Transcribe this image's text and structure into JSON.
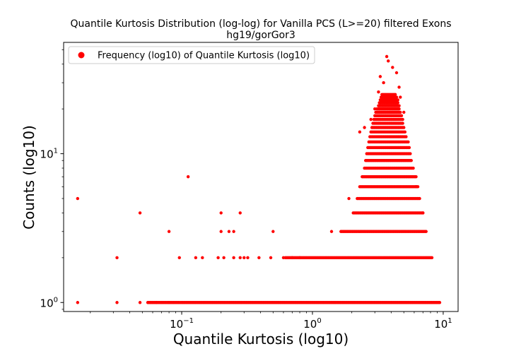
{
  "chart_data": {
    "type": "scatter",
    "title": "Quantile Kurtosis Distribution (log-log) for Vanilla PCS (L>=20) filtered Exons",
    "subtitle": "hg19/gorGor3",
    "xlabel": "Quantile Kurtosis (log10)",
    "ylabel": "Counts (log10)",
    "xscale": "log",
    "yscale": "log",
    "xlim": [
      0.0125,
      13
    ],
    "ylim": [
      0.87,
      56
    ],
    "grid": false,
    "legend_position": "top-left",
    "marker_color": "#ff0000",
    "x_major_ticks": [
      {
        "value": 0.1,
        "base": "10",
        "exp": "−1"
      },
      {
        "value": 1,
        "base": "10",
        "exp": "0"
      },
      {
        "value": 10,
        "base": "10",
        "exp": "1"
      }
    ],
    "y_major_ticks": [
      {
        "value": 1,
        "base": "10",
        "exp": "0"
      },
      {
        "value": 10,
        "base": "10",
        "exp": "1"
      }
    ],
    "series": [
      {
        "name": "Frequency (log10) of Quantile Kurtosis (log10)",
        "color": "#ff0000",
        "points": [
          [
            0.016,
            5
          ],
          [
            0.016,
            1
          ],
          [
            0.032,
            2
          ],
          [
            0.032,
            1
          ],
          [
            0.048,
            4
          ],
          [
            0.048,
            1
          ],
          [
            0.064,
            1
          ],
          [
            0.08,
            3
          ],
          [
            0.08,
            1
          ],
          [
            0.096,
            2
          ],
          [
            0.112,
            7
          ],
          [
            0.128,
            2
          ],
          [
            0.144,
            2
          ],
          [
            0.19,
            2
          ],
          [
            0.2,
            4
          ],
          [
            0.2,
            3
          ],
          [
            0.21,
            2
          ],
          [
            0.23,
            3
          ],
          [
            0.25,
            3
          ],
          [
            0.25,
            2
          ],
          [
            0.28,
            4
          ],
          [
            0.28,
            2
          ],
          [
            0.3,
            2
          ],
          [
            0.32,
            2
          ],
          [
            0.39,
            2
          ],
          [
            0.5,
            3
          ],
          [
            0.48,
            2
          ],
          [
            0.6,
            2
          ],
          [
            0.7,
            2
          ],
          [
            0.8,
            2
          ],
          [
            1.4,
            3
          ],
          [
            1.9,
            5
          ],
          [
            2.3,
            14
          ],
          [
            2.5,
            15
          ],
          [
            3.7,
            45
          ],
          [
            3.8,
            42
          ],
          [
            4.1,
            38
          ],
          [
            4.4,
            35
          ],
          [
            3.3,
            33
          ],
          [
            3.5,
            30
          ],
          [
            4.6,
            28
          ],
          [
            3.2,
            26
          ],
          [
            4.7,
            24
          ],
          [
            3.0,
            20
          ],
          [
            5.0,
            19
          ],
          [
            2.8,
            17
          ],
          [
            5.4,
            12
          ],
          [
            6.2,
            6
          ],
          [
            7.0,
            4
          ]
        ],
        "bands": [
          {
            "y": 1,
            "x_range": [
              0.055,
              9.4
            ]
          },
          {
            "y": 2,
            "x_range": [
              0.62,
              8.2
            ]
          },
          {
            "y": 3,
            "x_range": [
              1.65,
              7.4
            ]
          },
          {
            "y": 4,
            "x_range": [
              2.05,
              7.0
            ]
          },
          {
            "y": 5,
            "x_range": [
              2.2,
              6.6
            ]
          },
          {
            "y": 6,
            "x_range": [
              2.3,
              6.4
            ]
          },
          {
            "y": 7,
            "x_range": [
              2.4,
              6.2
            ]
          },
          {
            "y": 8,
            "x_range": [
              2.5,
              5.9
            ]
          },
          {
            "y": 9,
            "x_range": [
              2.55,
              5.7
            ]
          },
          {
            "y": 10,
            "x_range": [
              2.6,
              5.6
            ]
          },
          {
            "y": 11,
            "x_range": [
              2.65,
              5.5
            ]
          },
          {
            "y": 12,
            "x_range": [
              2.7,
              5.3
            ]
          },
          {
            "y": 13,
            "x_range": [
              2.75,
              5.2
            ]
          },
          {
            "y": 14,
            "x_range": [
              2.8,
              5.1
            ]
          },
          {
            "y": 15,
            "x_range": [
              2.85,
              5.0
            ]
          },
          {
            "y": 16,
            "x_range": [
              2.9,
              4.9
            ]
          },
          {
            "y": 17,
            "x_range": [
              2.95,
              4.9
            ]
          },
          {
            "y": 18,
            "x_range": [
              3.0,
              4.8
            ]
          },
          {
            "y": 19,
            "x_range": [
              3.05,
              4.7
            ]
          },
          {
            "y": 20,
            "x_range": [
              3.1,
              4.6
            ]
          },
          {
            "y": 21,
            "x_range": [
              3.2,
              4.6
            ]
          },
          {
            "y": 22,
            "x_range": [
              3.25,
              4.5
            ]
          },
          {
            "y": 23,
            "x_range": [
              3.3,
              4.5
            ]
          },
          {
            "y": 24,
            "x_range": [
              3.35,
              4.4
            ]
          },
          {
            "y": 25,
            "x_range": [
              3.4,
              4.3
            ]
          }
        ]
      }
    ]
  }
}
